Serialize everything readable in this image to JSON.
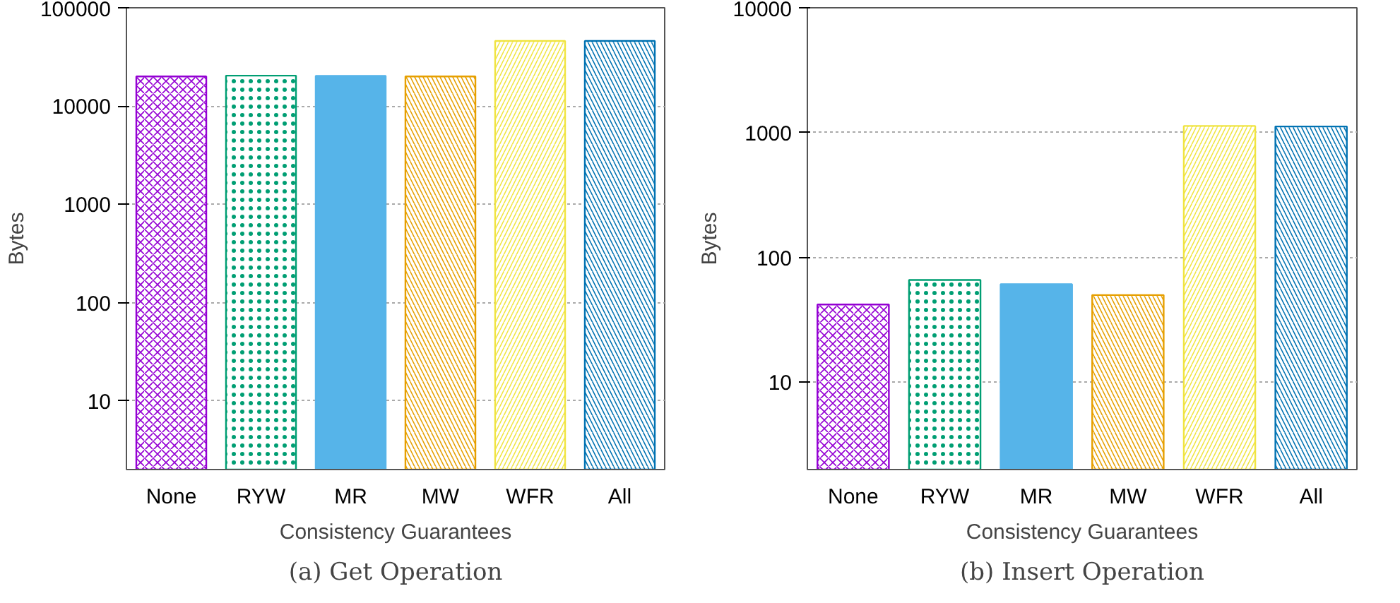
{
  "chart_data": [
    {
      "type": "bar",
      "title": "(a) Get Operation",
      "xlabel": "Consistency Guarantees",
      "ylabel": "Bytes",
      "categories": [
        "None",
        "RYW",
        "MR",
        "MW",
        "WFR",
        "All"
      ],
      "values": [
        20000,
        20400,
        20300,
        20000,
        46000,
        46000
      ],
      "colors": [
        "#9400d3",
        "#009e73",
        "#56b4e9",
        "#e69f00",
        "#f0e442",
        "#0072b2"
      ],
      "log": true,
      "ylim": [
        2,
        100000
      ],
      "yticks": [
        10,
        100,
        1000,
        10000,
        100000
      ],
      "grid": "y"
    },
    {
      "type": "bar",
      "title": "(b) Insert Operation",
      "xlabel": "Consistency Guarantees",
      "ylabel": "Bytes",
      "categories": [
        "None",
        "RYW",
        "MR",
        "MW",
        "WFR",
        "All"
      ],
      "values": [
        42,
        66,
        61,
        50,
        1130,
        1120
      ],
      "colors": [
        "#9400d3",
        "#009e73",
        "#56b4e9",
        "#e69f00",
        "#f0e442",
        "#0072b2"
      ],
      "log": true,
      "ylim": [
        2,
        10000
      ],
      "yticks": [
        10,
        100,
        1000,
        10000
      ],
      "grid": "y"
    }
  ]
}
